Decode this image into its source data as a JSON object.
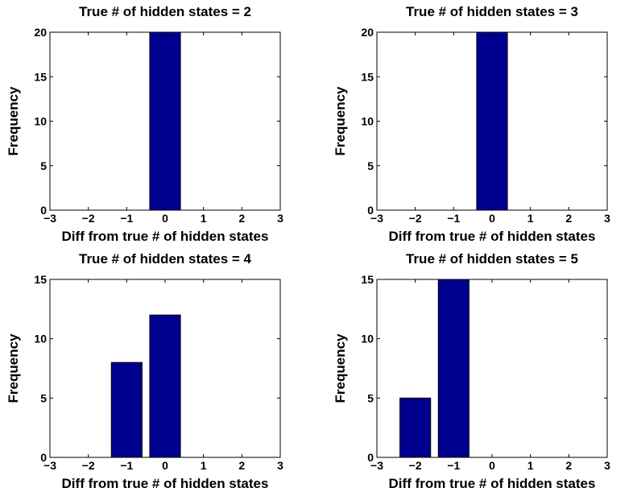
{
  "chart_data": [
    {
      "type": "bar",
      "title": "True # of hidden states = 2",
      "xlabel": "Diff from true # of hidden states",
      "ylabel": "Frequency",
      "x": [
        -3,
        -2,
        -1,
        0,
        1,
        2,
        3
      ],
      "values": [
        0,
        0,
        0,
        20,
        0,
        0,
        0
      ],
      "xlim": [
        -3,
        3
      ],
      "ylim": [
        0,
        20
      ],
      "xticks": [
        "−3",
        "−2",
        "−1",
        "0",
        "1",
        "2",
        "3"
      ],
      "yticks": [
        "0",
        "5",
        "10",
        "15",
        "20"
      ],
      "ytick_values": [
        0,
        5,
        10,
        15,
        20
      ],
      "xtick_values": [
        -3,
        -2,
        -1,
        0,
        1,
        2,
        3
      ],
      "bar_color": "#00008f",
      "grid": false
    },
    {
      "type": "bar",
      "title": "True # of hidden states = 3",
      "xlabel": "Diff from true # of hidden states",
      "ylabel": "Frequency",
      "x": [
        -3,
        -2,
        -1,
        0,
        1,
        2,
        3
      ],
      "values": [
        0,
        0,
        0,
        20,
        0,
        0,
        0
      ],
      "xlim": [
        -3,
        3
      ],
      "ylim": [
        0,
        20
      ],
      "xticks": [
        "−3",
        "−2",
        "−1",
        "0",
        "1",
        "2",
        "3"
      ],
      "yticks": [
        "0",
        "5",
        "10",
        "15",
        "20"
      ],
      "ytick_values": [
        0,
        5,
        10,
        15,
        20
      ],
      "xtick_values": [
        -3,
        -2,
        -1,
        0,
        1,
        2,
        3
      ],
      "bar_color": "#00008f",
      "grid": false
    },
    {
      "type": "bar",
      "title": "True # of hidden states = 4",
      "xlabel": "Diff from true # of hidden states",
      "ylabel": "Frequency",
      "x": [
        -3,
        -2,
        -1,
        0,
        1,
        2,
        3
      ],
      "values": [
        0,
        0,
        8,
        12,
        0,
        0,
        0
      ],
      "xlim": [
        -3,
        3
      ],
      "ylim": [
        0,
        15
      ],
      "xticks": [
        "−3",
        "−2",
        "−1",
        "0",
        "1",
        "2",
        "3"
      ],
      "yticks": [
        "0",
        "5",
        "10",
        "15"
      ],
      "ytick_values": [
        0,
        5,
        10,
        15
      ],
      "xtick_values": [
        -3,
        -2,
        -1,
        0,
        1,
        2,
        3
      ],
      "bar_color": "#00008f",
      "grid": false
    },
    {
      "type": "bar",
      "title": "True # of hidden states = 5",
      "xlabel": "Diff from true # of hidden states",
      "ylabel": "Frequency",
      "x": [
        -3,
        -2,
        -1,
        0,
        1,
        2,
        3
      ],
      "values": [
        0,
        5,
        15,
        0,
        0,
        0,
        0
      ],
      "xlim": [
        -3,
        3
      ],
      "ylim": [
        0,
        15
      ],
      "xticks": [
        "−3",
        "−2",
        "−1",
        "0",
        "1",
        "2",
        "3"
      ],
      "yticks": [
        "0",
        "5",
        "10",
        "15"
      ],
      "ytick_values": [
        0,
        5,
        10,
        15
      ],
      "xtick_values": [
        -3,
        -2,
        -1,
        0,
        1,
        2,
        3
      ],
      "bar_color": "#00008f",
      "grid": false
    }
  ]
}
